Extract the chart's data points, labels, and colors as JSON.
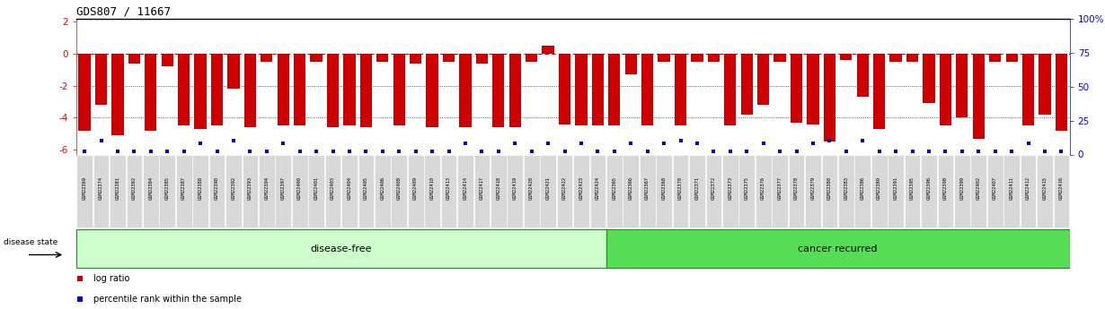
{
  "title": "GDS807 / 11667",
  "samples_disease_free": [
    "GSM22369",
    "GSM22374",
    "GSM22381",
    "GSM22382",
    "GSM22384",
    "GSM22385",
    "GSM22387",
    "GSM22388",
    "GSM22390",
    "GSM22392",
    "GSM22393",
    "GSM22394",
    "GSM22397",
    "GSM22400",
    "GSM22401",
    "GSM22403",
    "GSM22404",
    "GSM22405",
    "GSM22406",
    "GSM22408",
    "GSM22409",
    "GSM22410",
    "GSM22413",
    "GSM22414",
    "GSM22417",
    "GSM22418",
    "GSM22419",
    "GSM22420",
    "GSM22421",
    "GSM22422",
    "GSM22423",
    "GSM22424"
  ],
  "samples_cancer": [
    "GSM22365",
    "GSM22366",
    "GSM22367",
    "GSM22368",
    "GSM22370",
    "GSM22371",
    "GSM22372",
    "GSM22373",
    "GSM22375",
    "GSM22376",
    "GSM22377",
    "GSM22378",
    "GSM22379",
    "GSM22380",
    "GSM22383",
    "GSM22386",
    "GSM22389",
    "GSM22391",
    "GSM22395",
    "GSM22396",
    "GSM22398",
    "GSM22399",
    "GSM22402",
    "GSM22407",
    "GSM22411",
    "GSM22412",
    "GSM22415",
    "GSM22416"
  ],
  "log_ratios_df": [
    -4.8,
    -3.2,
    -5.1,
    -0.6,
    -4.8,
    -0.8,
    -4.5,
    -4.7,
    -4.5,
    -2.2,
    -4.6,
    -0.5,
    -4.5,
    -4.5,
    -0.5,
    -4.6,
    -4.5,
    -4.6,
    -0.5,
    -4.5,
    -0.6,
    -4.6,
    -0.5,
    -4.6,
    -0.6,
    -4.6,
    -4.6,
    -0.5,
    0.5,
    -4.4,
    -4.5,
    -4.5
  ],
  "log_ratios_cr": [
    -4.5,
    -1.3,
    -4.5,
    -0.5,
    -4.5,
    -0.5,
    -0.5,
    -4.5,
    -3.8,
    -3.2,
    -0.5,
    -4.3,
    -4.4,
    -5.5,
    -0.4,
    -2.7,
    -4.7,
    -0.5,
    -0.5,
    -3.1,
    -4.5,
    -4.0,
    -5.3,
    -0.5,
    -0.5,
    -4.5,
    -3.8,
    -4.8
  ],
  "pct_ranks_df": [
    2,
    10,
    2,
    2,
    2,
    2,
    2,
    8,
    2,
    10,
    2,
    2,
    8,
    2,
    2,
    2,
    2,
    2,
    2,
    2,
    2,
    2,
    2,
    8,
    2,
    2,
    8,
    2,
    8,
    2,
    8,
    2
  ],
  "pct_ranks_cr": [
    2,
    8,
    2,
    8,
    10,
    8,
    2,
    2,
    2,
    8,
    2,
    2,
    8,
    10,
    2,
    10,
    2,
    2,
    2,
    2,
    2,
    2,
    2,
    2,
    2,
    8,
    2,
    2
  ],
  "bar_color": "#cc0000",
  "percentile_color": "#0000cc",
  "ylim_left": [
    -6.3,
    2.2
  ],
  "ylim_right": [
    0,
    100
  ],
  "yticks_left": [
    -6,
    -4,
    -2,
    0,
    2
  ],
  "yticks_right": [
    0,
    25,
    50,
    75,
    100
  ],
  "grid_lines": [
    -2.0,
    -4.0
  ],
  "disease_free_color": "#ccffcc",
  "cancer_recurred_color": "#55dd55",
  "label_box_color": "#d8d8d8",
  "group_strip_border": "#228822"
}
